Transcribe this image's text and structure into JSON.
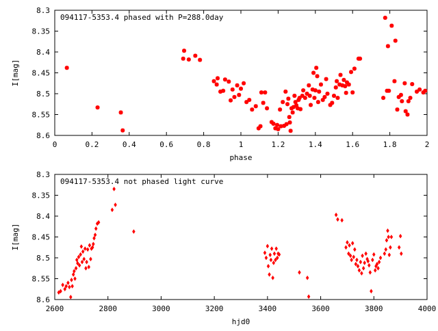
{
  "colors": {
    "points": "#ff0000",
    "axis": "#000000",
    "background": "#ffffff"
  },
  "chart_data": [
    {
      "type": "scatter",
      "title": "094117-5353.4 phased with P=288.0day",
      "xlabel": "phase",
      "ylabel": "I[mag]",
      "xlim": [
        0,
        2
      ],
      "ylim": [
        8.6,
        8.3
      ],
      "y_inverted": true,
      "grid": false,
      "marker": "star",
      "xticks": [
        "0",
        "0.2",
        "0.4",
        "0.6",
        "0.8",
        "1",
        "1.2",
        "1.4",
        "1.6",
        "1.8",
        "2"
      ],
      "yticks": [
        "8.3",
        "8.35",
        "8.4",
        "8.45",
        "8.5",
        "8.55",
        "8.6"
      ],
      "points": [
        [
          0.065,
          8.438
        ],
        [
          0.23,
          8.533
        ],
        [
          0.355,
          8.545
        ],
        [
          0.365,
          8.588
        ],
        [
          0.69,
          8.416
        ],
        [
          0.695,
          8.397
        ],
        [
          0.72,
          8.418
        ],
        [
          0.755,
          8.409
        ],
        [
          0.78,
          8.419
        ],
        [
          0.855,
          8.47
        ],
        [
          0.87,
          8.478
        ],
        [
          0.875,
          8.463
        ],
        [
          0.89,
          8.495
        ],
        [
          0.905,
          8.493
        ],
        [
          0.915,
          8.466
        ],
        [
          0.935,
          8.471
        ],
        [
          0.945,
          8.516
        ],
        [
          0.955,
          8.49
        ],
        [
          0.965,
          8.508
        ],
        [
          0.98,
          8.48
        ],
        [
          0.99,
          8.503
        ],
        [
          1.0,
          8.488
        ],
        [
          1.015,
          8.475
        ],
        [
          1.03,
          8.52
        ],
        [
          1.045,
          8.515
        ],
        [
          1.06,
          8.538
        ],
        [
          1.08,
          8.53
        ],
        [
          1.095,
          8.583
        ],
        [
          1.105,
          8.578
        ],
        [
          1.11,
          8.497
        ],
        [
          1.12,
          8.522
        ],
        [
          1.13,
          8.497
        ],
        [
          1.14,
          8.535
        ],
        [
          1.165,
          8.568
        ],
        [
          1.175,
          8.572
        ],
        [
          1.185,
          8.583
        ],
        [
          1.195,
          8.575
        ],
        [
          1.2,
          8.585
        ],
        [
          1.21,
          8.538
        ],
        [
          1.215,
          8.578
        ],
        [
          1.225,
          8.52
        ],
        [
          1.232,
          8.577
        ],
        [
          1.24,
          8.495
        ],
        [
          1.245,
          8.573
        ],
        [
          1.25,
          8.525
        ],
        [
          1.255,
          8.512
        ],
        [
          1.26,
          8.556
        ],
        [
          1.263,
          8.569
        ],
        [
          1.267,
          8.589
        ],
        [
          1.272,
          8.535
        ],
        [
          1.278,
          8.545
        ],
        [
          1.283,
          8.532
        ],
        [
          1.288,
          8.505
        ],
        [
          1.293,
          8.52
        ],
        [
          1.298,
          8.528
        ],
        [
          1.305,
          8.535
        ],
        [
          1.31,
          8.515
        ],
        [
          1.315,
          8.51
        ],
        [
          1.32,
          8.537
        ],
        [
          1.33,
          8.505
        ],
        [
          1.335,
          8.492
        ],
        [
          1.345,
          8.51
        ],
        [
          1.355,
          8.5
        ],
        [
          1.365,
          8.48
        ],
        [
          1.37,
          8.505
        ],
        [
          1.375,
          8.527
        ],
        [
          1.385,
          8.49
        ],
        [
          1.39,
          8.45
        ],
        [
          1.395,
          8.51
        ],
        [
          1.4,
          8.492
        ],
        [
          1.405,
          8.438
        ],
        [
          1.41,
          8.458
        ],
        [
          1.415,
          8.52
        ],
        [
          1.42,
          8.495
        ],
        [
          1.43,
          8.478
        ],
        [
          1.44,
          8.515
        ],
        [
          1.45,
          8.508
        ],
        [
          1.458,
          8.465
        ],
        [
          1.465,
          8.5
        ],
        [
          1.48,
          8.527
        ],
        [
          1.49,
          8.522
        ],
        [
          1.5,
          8.505
        ],
        [
          1.51,
          8.485
        ],
        [
          1.515,
          8.47
        ],
        [
          1.52,
          8.51
        ],
        [
          1.53,
          8.478
        ],
        [
          1.535,
          8.455
        ],
        [
          1.545,
          8.48
        ],
        [
          1.553,
          8.467
        ],
        [
          1.56,
          8.482
        ],
        [
          1.565,
          8.498
        ],
        [
          1.57,
          8.473
        ],
        [
          1.58,
          8.478
        ],
        [
          1.592,
          8.448
        ],
        [
          1.6,
          8.497
        ],
        [
          1.61,
          8.44
        ],
        [
          1.632,
          8.416
        ],
        [
          1.64,
          8.416
        ],
        [
          1.765,
          8.51
        ],
        [
          1.775,
          8.318
        ],
        [
          1.785,
          8.493
        ],
        [
          1.79,
          8.386
        ],
        [
          1.795,
          8.493
        ],
        [
          1.81,
          8.337
        ],
        [
          1.825,
          8.47
        ],
        [
          1.83,
          8.373
        ],
        [
          1.84,
          8.538
        ],
        [
          1.848,
          8.508
        ],
        [
          1.86,
          8.503
        ],
        [
          1.865,
          8.518
        ],
        [
          1.88,
          8.475
        ],
        [
          1.885,
          8.542
        ],
        [
          1.895,
          8.55
        ],
        [
          1.9,
          8.518
        ],
        [
          1.91,
          8.51
        ],
        [
          1.92,
          8.477
        ],
        [
          1.945,
          8.495
        ],
        [
          1.96,
          8.49
        ],
        [
          1.98,
          8.497
        ],
        [
          1.99,
          8.493
        ]
      ]
    },
    {
      "type": "scatter",
      "title": "094117-5353.4 not phased light curve",
      "xlabel": "hjd0",
      "ylabel": "I[mag]",
      "xlim": [
        2600,
        4000
      ],
      "ylim": [
        8.6,
        8.3
      ],
      "y_inverted": true,
      "grid": false,
      "marker": "diamond",
      "xticks": [
        "2600",
        "2800",
        "3000",
        "3200",
        "3400",
        "3600",
        "3800",
        "4000"
      ],
      "yticks": [
        "8.3",
        "8.35",
        "8.4",
        "8.45",
        "8.5",
        "8.55",
        "8.6"
      ],
      "points": [
        [
          2615,
          8.583
        ],
        [
          2622,
          8.58
        ],
        [
          2630,
          8.565
        ],
        [
          2638,
          8.575
        ],
        [
          2643,
          8.568
        ],
        [
          2650,
          8.56
        ],
        [
          2655,
          8.57
        ],
        [
          2660,
          8.594
        ],
        [
          2663,
          8.553
        ],
        [
          2666,
          8.568
        ],
        [
          2670,
          8.54
        ],
        [
          2673,
          8.532
        ],
        [
          2676,
          8.55
        ],
        [
          2680,
          8.525
        ],
        [
          2683,
          8.505
        ],
        [
          2686,
          8.513
        ],
        [
          2690,
          8.498
        ],
        [
          2693,
          8.518
        ],
        [
          2697,
          8.492
        ],
        [
          2700,
          8.473
        ],
        [
          2703,
          8.51
        ],
        [
          2706,
          8.485
        ],
        [
          2710,
          8.503
        ],
        [
          2714,
          8.478
        ],
        [
          2717,
          8.525
        ],
        [
          2720,
          8.51
        ],
        [
          2724,
          8.48
        ],
        [
          2728,
          8.522
        ],
        [
          2731,
          8.47
        ],
        [
          2735,
          8.503
        ],
        [
          2738,
          8.478
        ],
        [
          2742,
          8.475
        ],
        [
          2745,
          8.467
        ],
        [
          2748,
          8.453
        ],
        [
          2752,
          8.445
        ],
        [
          2755,
          8.43
        ],
        [
          2760,
          8.418
        ],
        [
          2765,
          8.415
        ],
        [
          2816,
          8.385
        ],
        [
          2823,
          8.335
        ],
        [
          2828,
          8.373
        ],
        [
          2897,
          8.437
        ],
        [
          3390,
          8.488
        ],
        [
          3395,
          8.5
        ],
        [
          3400,
          8.472
        ],
        [
          3403,
          8.52
        ],
        [
          3407,
          8.54
        ],
        [
          3410,
          8.493
        ],
        [
          3413,
          8.505
        ],
        [
          3416,
          8.478
        ],
        [
          3420,
          8.548
        ],
        [
          3423,
          8.512
        ],
        [
          3426,
          8.49
        ],
        [
          3430,
          8.505
        ],
        [
          3433,
          8.478
        ],
        [
          3437,
          8.5
        ],
        [
          3440,
          8.49
        ],
        [
          3444,
          8.492
        ],
        [
          3520,
          8.535
        ],
        [
          3550,
          8.548
        ],
        [
          3555,
          8.593
        ],
        [
          3658,
          8.397
        ],
        [
          3664,
          8.408
        ],
        [
          3680,
          8.41
        ],
        [
          3695,
          8.475
        ],
        [
          3700,
          8.463
        ],
        [
          3705,
          8.49
        ],
        [
          3708,
          8.47
        ],
        [
          3712,
          8.495
        ],
        [
          3716,
          8.505
        ],
        [
          3720,
          8.465
        ],
        [
          3724,
          8.498
        ],
        [
          3728,
          8.48
        ],
        [
          3732,
          8.515
        ],
        [
          3736,
          8.505
        ],
        [
          3740,
          8.52
        ],
        [
          3745,
          8.53
        ],
        [
          3750,
          8.51
        ],
        [
          3754,
          8.537
        ],
        [
          3757,
          8.495
        ],
        [
          3761,
          8.525
        ],
        [
          3765,
          8.512
        ],
        [
          3770,
          8.49
        ],
        [
          3775,
          8.503
        ],
        [
          3778,
          8.508
        ],
        [
          3782,
          8.518
        ],
        [
          3786,
          8.535
        ],
        [
          3790,
          8.58
        ],
        [
          3795,
          8.505
        ],
        [
          3800,
          8.492
        ],
        [
          3805,
          8.53
        ],
        [
          3808,
          8.52
        ],
        [
          3812,
          8.515
        ],
        [
          3816,
          8.525
        ],
        [
          3820,
          8.51
        ],
        [
          3825,
          8.5
        ],
        [
          3840,
          8.49
        ],
        [
          3845,
          8.48
        ],
        [
          3848,
          8.458
        ],
        [
          3852,
          8.435
        ],
        [
          3855,
          8.45
        ],
        [
          3858,
          8.493
        ],
        [
          3862,
          8.475
        ],
        [
          3866,
          8.45
        ],
        [
          3895,
          8.475
        ],
        [
          3900,
          8.448
        ],
        [
          3903,
          8.49
        ]
      ]
    }
  ]
}
